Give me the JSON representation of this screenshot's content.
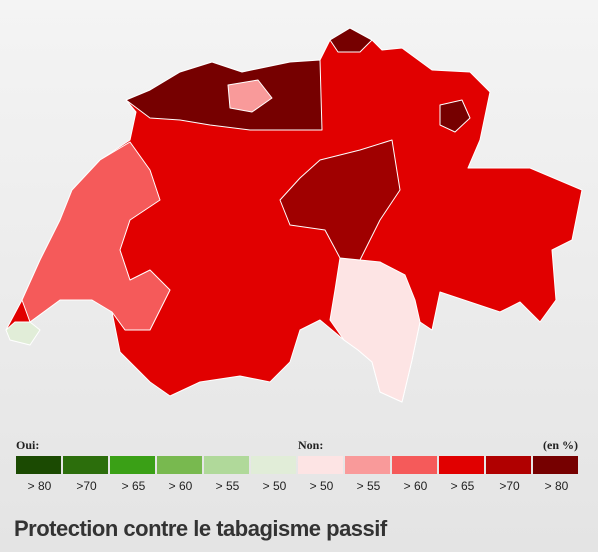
{
  "legend": {
    "yes_label": "Oui:",
    "no_label": "Non:",
    "unit": "(en %)",
    "items": [
      {
        "label": "> 80",
        "color": "#1b4a02"
      },
      {
        "label": ">70",
        "color": "#2c6e0c"
      },
      {
        "label": "> 65",
        "color": "#3aa016"
      },
      {
        "label": "> 60",
        "color": "#78b94f"
      },
      {
        "label": "> 55",
        "color": "#b0d99a"
      },
      {
        "label": "> 50",
        "color": "#e1edd8"
      },
      {
        "label": "> 50",
        "color": "#fde4e4"
      },
      {
        "label": "> 55",
        "color": "#f99a9a"
      },
      {
        "label": "> 60",
        "color": "#f55a5a"
      },
      {
        "label": "> 65",
        "color": "#e10000"
      },
      {
        "label": ">70",
        "color": "#b00000"
      },
      {
        "label": "> 80",
        "color": "#760000"
      }
    ]
  },
  "title": "Protection contre le tabagisme passif"
}
